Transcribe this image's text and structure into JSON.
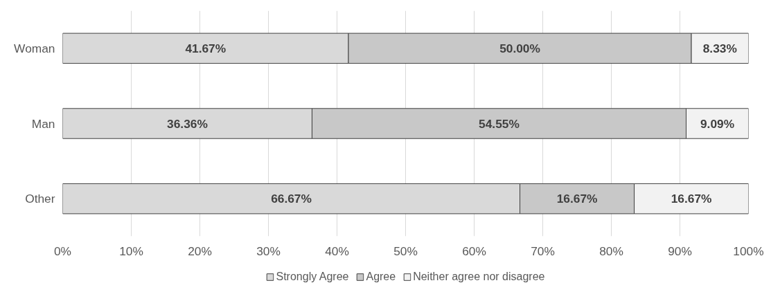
{
  "chart_data": {
    "type": "bar",
    "orientation": "horizontal",
    "stacked": true,
    "categories": [
      "Woman",
      "Man",
      "Other"
    ],
    "series": [
      {
        "name": "Strongly Agree",
        "color": "#d9d9d9",
        "values": [
          41.67,
          36.36,
          66.67
        ],
        "value_labels": [
          "41.67%",
          "36.36%",
          "66.67%"
        ]
      },
      {
        "name": "Agree",
        "color": "#c8c8c8",
        "values": [
          50.0,
          54.55,
          16.67
        ],
        "value_labels": [
          "50.00%",
          "54.55%",
          "16.67%"
        ]
      },
      {
        "name": "Neither agree nor disagree",
        "color": "#f2f2f2",
        "values": [
          8.33,
          9.09,
          16.67
        ],
        "value_labels": [
          "8.33%",
          "9.09%",
          "16.67%"
        ]
      }
    ],
    "xlim": [
      0,
      100
    ],
    "xticks": [
      {
        "value": 0,
        "label": "0%"
      },
      {
        "value": 10,
        "label": "10%"
      },
      {
        "value": 20,
        "label": "20%"
      },
      {
        "value": 30,
        "label": "30%"
      },
      {
        "value": 40,
        "label": "40%"
      },
      {
        "value": 50,
        "label": "50%"
      },
      {
        "value": 60,
        "label": "60%"
      },
      {
        "value": 70,
        "label": "70%"
      },
      {
        "value": 80,
        "label": "80%"
      },
      {
        "value": 90,
        "label": "90%"
      },
      {
        "value": 100,
        "label": "100%"
      }
    ],
    "grid": "x",
    "legend": "bottom"
  }
}
